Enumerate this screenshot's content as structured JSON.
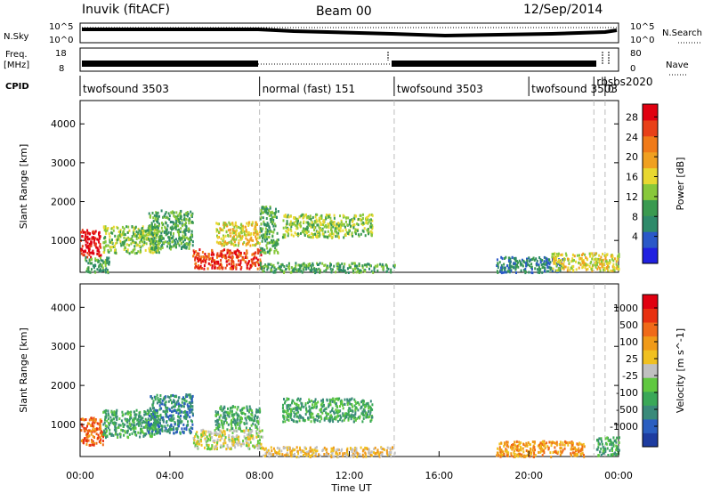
{
  "header": {
    "station": "Inuvik (fitACF)",
    "beam": "Beam 00",
    "date": "12/Sep/2014"
  },
  "strip_labels": {
    "nsky": "N.Sky",
    "nsky_ticks": [
      "10^5",
      "10^0"
    ],
    "nsearch": "N.Search",
    "freq": "Freq.",
    "freq_unit": "[MHz]",
    "freq_ticks": [
      "18",
      "8"
    ],
    "nave": "Nave",
    "nave_ticks": [
      "80",
      "0"
    ],
    "cpid": "CPID"
  },
  "cpid_segments": [
    {
      "label": "twofsound 3503",
      "start": 0.0,
      "end": 8.0
    },
    {
      "label": "normal (fast) 151",
      "start": 8.0,
      "end": 14.0
    },
    {
      "label": "twofsound 3503",
      "start": 14.0,
      "end": 20.0
    },
    {
      "label": "twofsound 3503",
      "start": 20.0,
      "end": 22.9
    },
    {
      "label": "rbsbs2020",
      "start": 22.9,
      "end": 23.4
    },
    {
      "label": "0",
      "start": 23.4,
      "end": 24.0
    }
  ],
  "chart_data": [
    {
      "type": "heatmap",
      "name": "power",
      "ylabel": "Slant Range [km]",
      "yticks": [
        1000,
        2000,
        3000,
        4000
      ],
      "ylim": [
        180,
        4600
      ],
      "xlim": [
        0,
        24
      ],
      "colorbar": {
        "label": "Power [dB]",
        "ticks": [
          "4",
          "8",
          "12",
          "16",
          "20",
          "24",
          "28"
        ],
        "colors": [
          "#2020e0",
          "#2a58c8",
          "#2e8a6a",
          "#3a9a50",
          "#88c83a",
          "#e8d830",
          "#f0a020",
          "#f07a18",
          "#e84018",
          "#e00010"
        ]
      },
      "regions": [
        {
          "x": [
            0.0,
            0.9
          ],
          "y": [
            600,
            1300
          ],
          "level": 9
        },
        {
          "x": [
            0.2,
            1.3
          ],
          "y": [
            200,
            600
          ],
          "level": 3
        },
        {
          "x": [
            1.0,
            3.5
          ],
          "y": [
            700,
            1400
          ],
          "level": 4
        },
        {
          "x": [
            3.0,
            5.0
          ],
          "y": [
            800,
            1800
          ],
          "level": 3
        },
        {
          "x": [
            5.0,
            8.1
          ],
          "y": [
            300,
            800
          ],
          "level": 8
        },
        {
          "x": [
            6.0,
            8.0
          ],
          "y": [
            900,
            1500
          ],
          "level": 5
        },
        {
          "x": [
            8.0,
            8.8
          ],
          "y": [
            700,
            1900
          ],
          "level": 3
        },
        {
          "x": [
            9.0,
            13.0
          ],
          "y": [
            1100,
            1700
          ],
          "level": 4
        },
        {
          "x": [
            8.0,
            14.0
          ],
          "y": [
            200,
            450
          ],
          "level": 3
        },
        {
          "x": [
            18.5,
            21.5
          ],
          "y": [
            200,
            600
          ],
          "level": 2
        },
        {
          "x": [
            21.0,
            24.0
          ],
          "y": [
            250,
            700
          ],
          "level": 5
        }
      ]
    },
    {
      "type": "heatmap",
      "name": "velocity",
      "xlabel": "Time UT",
      "ylabel": "Slant Range [km]",
      "xticks": [
        "00:00",
        "04:00",
        "08:00",
        "12:00",
        "16:00",
        "20:00",
        "00:00"
      ],
      "yticks": [
        1000,
        2000,
        3000,
        4000
      ],
      "ylim": [
        180,
        4600
      ],
      "xlim": [
        0,
        24
      ],
      "colorbar": {
        "label": "Velocity [m s^-1]",
        "ticks": [
          "1000",
          "500",
          "100",
          "25",
          "-25",
          "-100",
          "-500",
          "-1000"
        ],
        "colors": [
          "#1e3ca0",
          "#2a5ec0",
          "#3a8a7a",
          "#3aa858",
          "#60c840",
          "#c0c0c0",
          "#f0c020",
          "#f09a18",
          "#f06a18",
          "#e83010",
          "#e00010"
        ]
      },
      "regions": [
        {
          "x": [
            0.0,
            1.0
          ],
          "y": [
            500,
            1200
          ],
          "level": 8
        },
        {
          "x": [
            1.0,
            3.5
          ],
          "y": [
            700,
            1400
          ],
          "level": 3
        },
        {
          "x": [
            3.0,
            5.0
          ],
          "y": [
            800,
            1800
          ],
          "level": 2
        },
        {
          "x": [
            5.0,
            8.1
          ],
          "y": [
            400,
            900
          ],
          "level": 5
        },
        {
          "x": [
            6.0,
            8.0
          ],
          "y": [
            900,
            1500
          ],
          "level": 3
        },
        {
          "x": [
            9.0,
            13.0
          ],
          "y": [
            1100,
            1700
          ],
          "level": 3
        },
        {
          "x": [
            8.0,
            14.0
          ],
          "y": [
            200,
            450
          ],
          "level": 6
        },
        {
          "x": [
            18.5,
            22.5
          ],
          "y": [
            200,
            600
          ],
          "level": 7
        },
        {
          "x": [
            23.0,
            24.0
          ],
          "y": [
            200,
            700
          ],
          "level": 3
        }
      ]
    }
  ]
}
